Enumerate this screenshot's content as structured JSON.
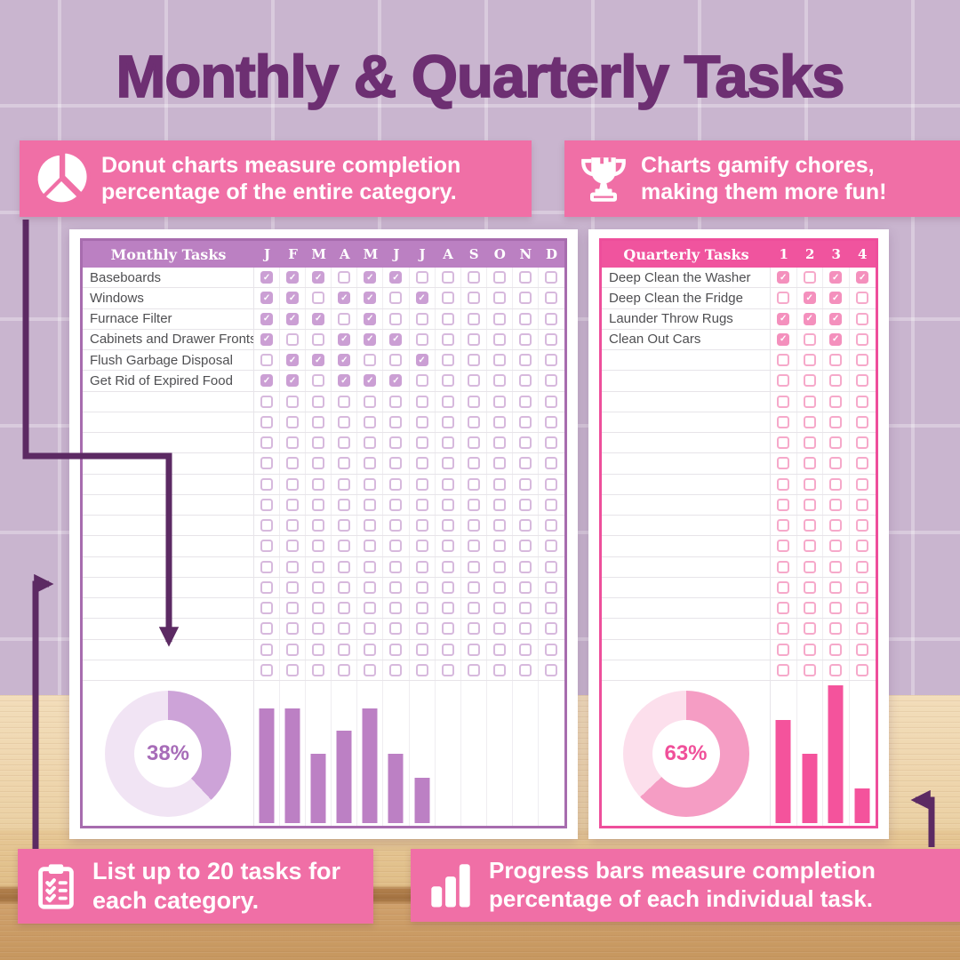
{
  "title": "Monthly & Quarterly Tasks",
  "callouts": {
    "donut": {
      "icon": "pie-chart-icon",
      "text": "Donut charts measure completion percentage of the entire category."
    },
    "trophy": {
      "icon": "trophy-icon",
      "text": "Charts gamify chores, making them more fun!"
    },
    "list": {
      "icon": "clipboard-checklist-icon",
      "text": "List up to 20 tasks for each category."
    },
    "bars": {
      "icon": "bar-chart-icon",
      "text": "Progress bars measure completion percentage of each individual task."
    }
  },
  "monthly": {
    "header": "Monthly Tasks",
    "columns": [
      "J",
      "F",
      "M",
      "A",
      "M",
      "J",
      "J",
      "A",
      "S",
      "O",
      "N",
      "D"
    ],
    "tasks": [
      {
        "name": "Baseboards",
        "checks": [
          1,
          1,
          1,
          0,
          1,
          1,
          0,
          0,
          0,
          0,
          0,
          0
        ]
      },
      {
        "name": "Windows",
        "checks": [
          1,
          1,
          0,
          1,
          1,
          0,
          1,
          0,
          0,
          0,
          0,
          0
        ]
      },
      {
        "name": "Furnace Filter",
        "checks": [
          1,
          1,
          1,
          0,
          1,
          0,
          0,
          0,
          0,
          0,
          0,
          0
        ]
      },
      {
        "name": "Cabinets and Drawer Fronts",
        "checks": [
          1,
          0,
          0,
          1,
          1,
          1,
          0,
          0,
          0,
          0,
          0,
          0
        ]
      },
      {
        "name": "Flush Garbage Disposal",
        "checks": [
          0,
          1,
          1,
          1,
          0,
          0,
          1,
          0,
          0,
          0,
          0,
          0
        ]
      },
      {
        "name": "Get Rid of Expired Food",
        "checks": [
          1,
          1,
          0,
          1,
          1,
          1,
          0,
          0,
          0,
          0,
          0,
          0
        ]
      }
    ],
    "empty_rows": 14,
    "donut_percent": 38,
    "donut_label": "38%",
    "bar_percents": [
      83,
      83,
      50,
      67,
      83,
      50,
      33,
      0,
      0,
      0,
      0,
      0
    ],
    "colors": {
      "table_border": "#a76cae",
      "header_bg": "#bb80c2",
      "check_fill": "#cb9fd4",
      "check_border": "#d7b9dd",
      "bar": "#bc80c4",
      "donut_dark": "#cda3d8",
      "donut_light": "#f1e4f4",
      "percent_text": "#a76cb8"
    }
  },
  "quarterly": {
    "header": "Quarterly Tasks",
    "columns": [
      "1",
      "2",
      "3",
      "4"
    ],
    "tasks": [
      {
        "name": "Deep Clean the Washer",
        "checks": [
          1,
          0,
          1,
          1
        ]
      },
      {
        "name": "Deep Clean the Fridge",
        "checks": [
          0,
          1,
          1,
          0
        ]
      },
      {
        "name": "Launder Throw Rugs",
        "checks": [
          1,
          1,
          1,
          0
        ]
      },
      {
        "name": "Clean Out Cars",
        "checks": [
          1,
          0,
          1,
          0
        ]
      }
    ],
    "empty_rows": 16,
    "donut_percent": 63,
    "donut_label": "63%",
    "bar_percents": [
      75,
      50,
      100,
      25
    ],
    "colors": {
      "table_border": "#ee4e9b",
      "header_bg": "#f0549e",
      "check_fill": "#f490bd",
      "check_border": "#f6a9ca",
      "bar": "#f4539c",
      "donut_dark": "#f59dc4",
      "donut_light": "#fcdfec",
      "percent_text": "#f0509a"
    }
  },
  "chart_data": [
    {
      "type": "pie",
      "title": "Monthly Tasks category completion donut",
      "labels": [
        "complete",
        "incomplete"
      ],
      "values": [
        38,
        62
      ],
      "center_label": "38%"
    },
    {
      "type": "bar",
      "title": "Monthly Tasks per-month completion bars",
      "categories": [
        "J",
        "F",
        "M",
        "A",
        "M",
        "J",
        "J",
        "A",
        "S",
        "O",
        "N",
        "D"
      ],
      "values": [
        83,
        83,
        50,
        67,
        83,
        50,
        33,
        0,
        0,
        0,
        0,
        0
      ],
      "ylim": [
        0,
        100
      ]
    },
    {
      "type": "pie",
      "title": "Quarterly Tasks category completion donut",
      "labels": [
        "complete",
        "incomplete"
      ],
      "values": [
        63,
        37
      ],
      "center_label": "63%"
    },
    {
      "type": "bar",
      "title": "Quarterly Tasks per-quarter completion bars",
      "categories": [
        "1",
        "2",
        "3",
        "4"
      ],
      "values": [
        75,
        50,
        100,
        25
      ],
      "ylim": [
        0,
        100
      ]
    }
  ],
  "colors": {
    "accent_pink": "#f06fa6",
    "title_purple": "#6d2f72",
    "arrow_purple": "#5c2a63",
    "wall": "#c9b5cf"
  }
}
